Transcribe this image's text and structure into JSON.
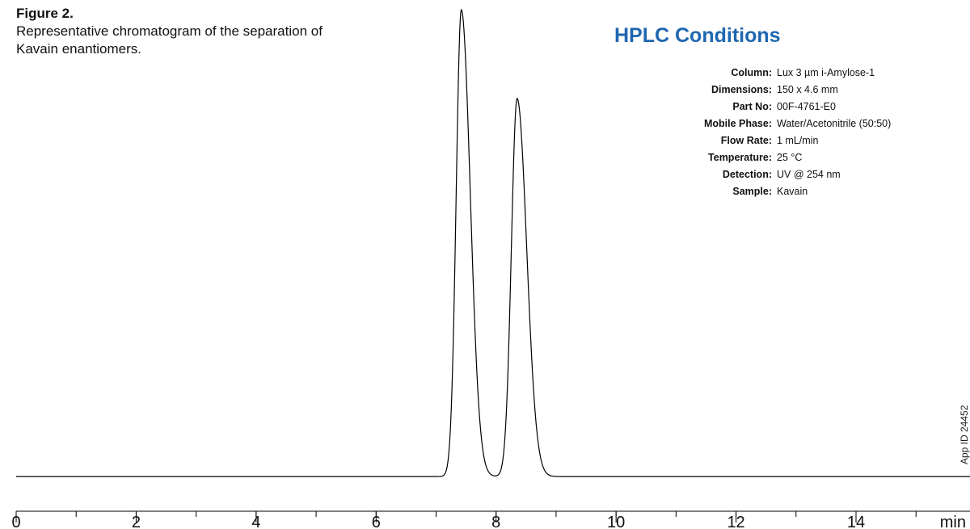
{
  "figure": {
    "label": "Figure 2.",
    "description": "Representative chromatogram of the separation of Kavain enantiomers."
  },
  "conditions": {
    "title": "HPLC Conditions",
    "title_color": "#1f66b0",
    "rows": [
      {
        "key": "Column:",
        "value": "Lux 3 µm i-Amylose-1"
      },
      {
        "key": "Dimensions:",
        "value": "150 x 4.6 mm"
      },
      {
        "key": "Part No:",
        "value": "00F-4761-E0"
      },
      {
        "key": "Mobile Phase:",
        "value": "Water/Acetonitrile (50:50)"
      },
      {
        "key": "Flow Rate:",
        "value": "1 mL/min"
      },
      {
        "key": "Temperature:",
        "value": "25 °C"
      },
      {
        "key": "Detection:",
        "value": "UV @ 254 nm"
      },
      {
        "key": "Sample:",
        "value": "Kavain"
      }
    ]
  },
  "app_id": "App ID 24452",
  "chart_data": {
    "type": "line",
    "xlabel": "min",
    "xlim": [
      0,
      15.9
    ],
    "ylim": [
      0,
      1
    ],
    "x_ticks": [
      0,
      2,
      4,
      6,
      8,
      10,
      12,
      14
    ],
    "x_tick_labels": [
      "0",
      "2",
      "4",
      "6",
      "8",
      "10",
      "12",
      "14"
    ],
    "minor_tick_step": 1,
    "grid": false,
    "series": [
      {
        "color": "#000000",
        "peaks": [
          {
            "rt": 7.42,
            "height": 1.0,
            "width": 0.085,
            "tail": 0.15
          },
          {
            "rt": 8.35,
            "height": 0.81,
            "width": 0.095,
            "tail": 0.16
          }
        ]
      }
    ]
  }
}
